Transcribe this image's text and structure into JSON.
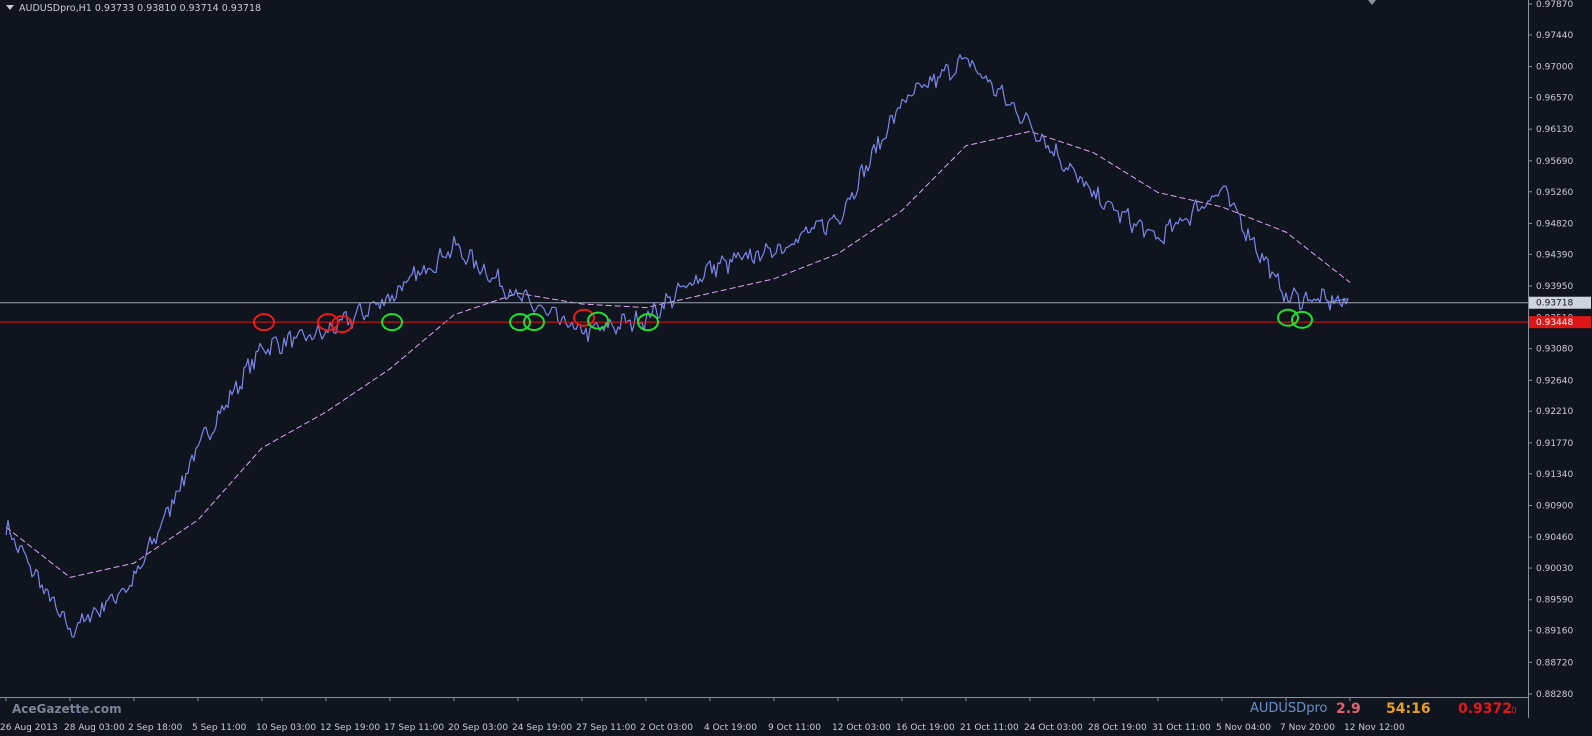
{
  "symbol_header": "AUDUSDpro,H1  0.93733 0.93810 0.93714 0.93718",
  "price_axis": {
    "ticks": [
      "0.97870",
      "0.97440",
      "0.97000",
      "0.96570",
      "0.96130",
      "0.95690",
      "0.95260",
      "0.94820",
      "0.94390",
      "0.93950",
      "0.93510",
      "0.93080",
      "0.92640",
      "0.92210",
      "0.91770",
      "0.91340",
      "0.90900",
      "0.90460",
      "0.90030",
      "0.89590",
      "0.89160",
      "0.88720",
      "0.88280"
    ],
    "current_price_label": "0.93718",
    "level_label": "0.93448"
  },
  "time_axis": {
    "labels": [
      "26 Aug 2013",
      "28 Aug 03:00",
      "2 Sep 18:00",
      "5 Sep 11:00",
      "10 Sep 03:00",
      "12 Sep 19:00",
      "17 Sep 11:00",
      "20 Sep 03:00",
      "24 Sep 19:00",
      "27 Sep 11:00",
      "2 Oct 03:00",
      "4 Oct 19:00",
      "9 Oct 11:00",
      "12 Oct 03:00",
      "16 Oct 19:00",
      "21 Oct 11:00",
      "24 Oct 03:00",
      "28 Oct 19:00",
      "31 Oct 11:00",
      "5 Nov 04:00",
      "7 Nov 20:00",
      "12 Nov 12:00"
    ]
  },
  "footer": {
    "brand": "AceGazette.com",
    "symbol": "AUDUSDpro",
    "spread": "2.9",
    "timer": "54:16",
    "bid": "0.9372",
    "bid_suffix": "0"
  },
  "colors": {
    "background": "#10141f",
    "price_line": "#7b86e8",
    "moving_average": "#d9a8e8",
    "current_price_line": "#9aa4b4",
    "level_line": "#e01515",
    "red_marker": "#e81a1a",
    "green_marker": "#1fe02a"
  },
  "chart_data": {
    "type": "line",
    "x": [
      "26 Aug 2013",
      "28 Aug 03:00",
      "2 Sep 18:00",
      "5 Sep 11:00",
      "10 Sep 03:00",
      "12 Sep 19:00",
      "17 Sep 11:00",
      "20 Sep 03:00",
      "24 Sep 19:00",
      "27 Sep 11:00",
      "2 Oct 03:00",
      "4 Oct 19:00",
      "9 Oct 11:00",
      "12 Oct 03:00",
      "16 Oct 19:00",
      "21 Oct 11:00",
      "24 Oct 03:00",
      "28 Oct 19:00",
      "31 Oct 11:00",
      "5 Nov 04:00",
      "7 Nov 20:00",
      "12 Nov 12:00"
    ],
    "series": [
      {
        "values": [
          0.906,
          0.8915,
          0.8985,
          0.917,
          0.931,
          0.933,
          0.938,
          0.945,
          0.938,
          0.933,
          0.935,
          0.942,
          0.9445,
          0.949,
          0.965,
          0.971,
          0.962,
          0.952,
          0.946,
          0.953,
          0.938,
          0.9372
        ]
      },
      {
        "values": [
          0.906,
          0.899,
          0.901,
          0.907,
          0.917,
          0.922,
          0.928,
          0.9355,
          0.9385,
          0.937,
          0.9365,
          0.9385,
          0.9405,
          0.944,
          0.95,
          0.959,
          0.961,
          0.958,
          0.9525,
          0.9505,
          0.947,
          0.94
        ]
      }
    ],
    "ylim": [
      0.8828,
      0.9787
    ],
    "horizontal_lines": [
      0.93718,
      0.93448
    ],
    "grid": false,
    "legend": "none"
  },
  "annotations": {
    "red_circles": [
      {
        "time": "10 Sep 03:00",
        "price": 0.93448
      },
      {
        "time": "12 Sep 19:00",
        "price": 0.93448
      },
      {
        "time": "12 Sep 19:00",
        "price": 0.9342
      },
      {
        "time": "27 Sep 11:00",
        "price": 0.9351
      }
    ],
    "green_circles": [
      {
        "time": "17 Sep 11:00",
        "price": 0.93448
      },
      {
        "time": "24 Sep 19:00",
        "price": 0.93448
      },
      {
        "time": "24 Sep 19:00",
        "price": 0.9345
      },
      {
        "time": "27 Sep 11:00",
        "price": 0.9347
      },
      {
        "time": "2 Oct 03:00",
        "price": 0.93448
      },
      {
        "time": "7 Nov 20:00",
        "price": 0.9351
      },
      {
        "time": "7 Nov 20:00",
        "price": 0.9348
      }
    ]
  }
}
